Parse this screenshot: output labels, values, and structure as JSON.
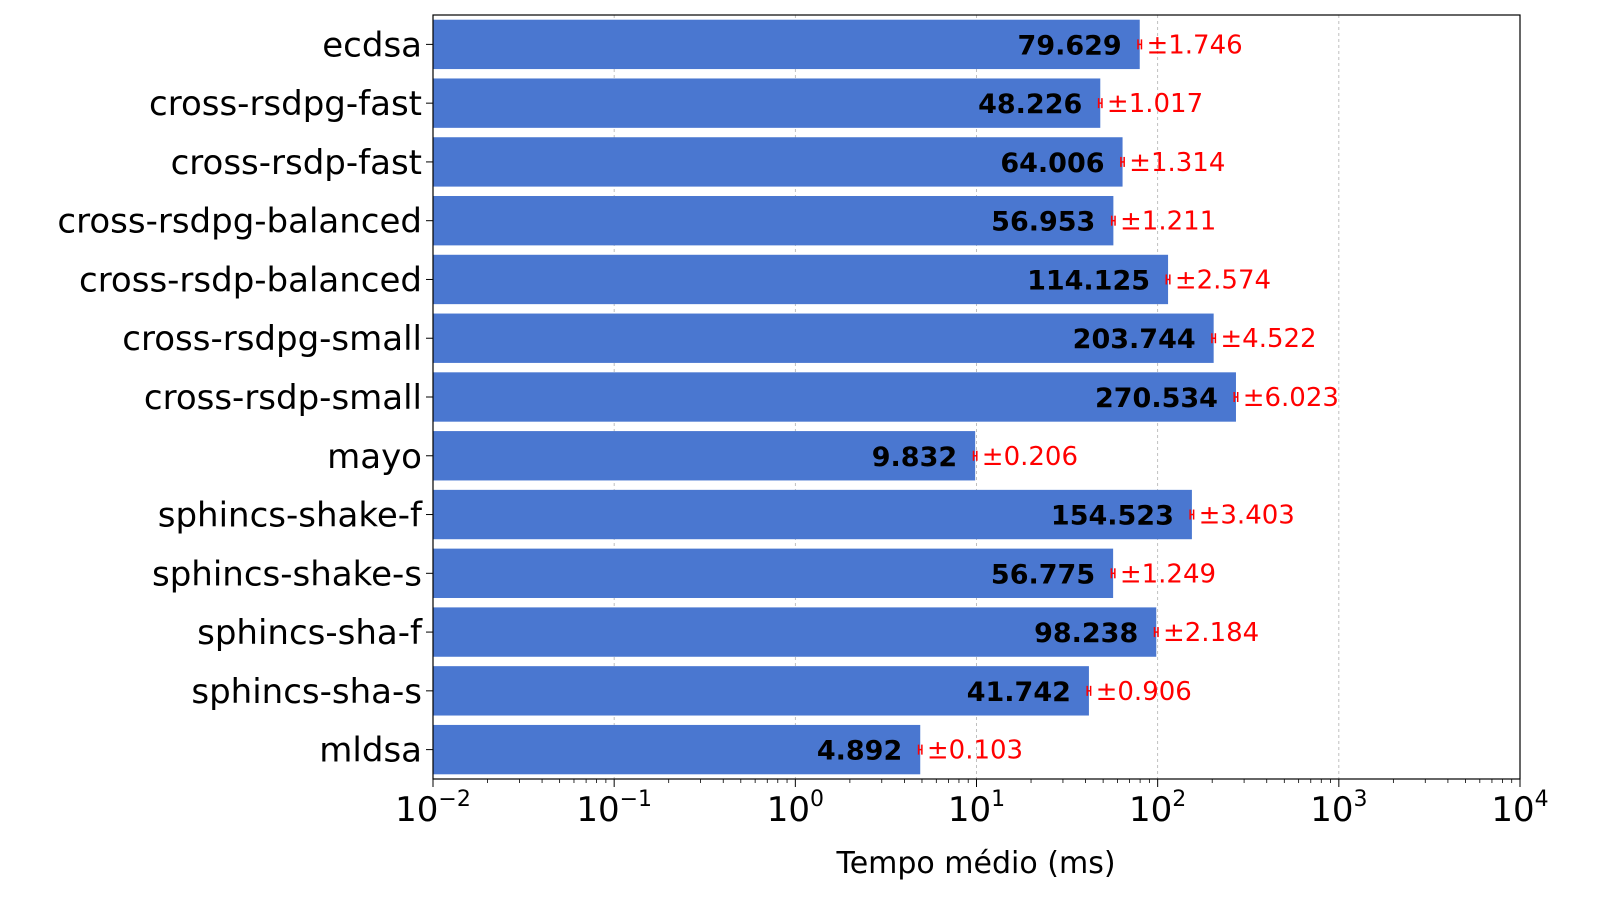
{
  "chart_data": {
    "type": "bar",
    "orientation": "horizontal",
    "xscale": "log",
    "xlim": [
      0.01,
      10000
    ],
    "xticks": [
      {
        "base": "10",
        "exp": "−2"
      },
      {
        "base": "10",
        "exp": "−1"
      },
      {
        "base": "10",
        "exp": "0"
      },
      {
        "base": "10",
        "exp": "1"
      },
      {
        "base": "10",
        "exp": "2"
      },
      {
        "base": "10",
        "exp": "3"
      },
      {
        "base": "10",
        "exp": "4"
      }
    ],
    "xlabel": "Tempo médio (ms)",
    "ylabel": "",
    "title": "",
    "grid": "vertical dashed at major ticks",
    "colors": {
      "bar": "#4a77d0",
      "error": "#ff0000",
      "value_label": "#000000",
      "error_label": "#ff0000"
    },
    "categories": [
      "ecdsa",
      "cross-rsdpg-fast",
      "cross-rsdp-fast",
      "cross-rsdpg-balanced",
      "cross-rsdp-balanced",
      "cross-rsdpg-small",
      "cross-rsdp-small",
      "mayo",
      "sphincs-shake-f",
      "sphincs-shake-s",
      "sphincs-sha-f",
      "sphincs-sha-s",
      "mldsa"
    ],
    "values": [
      79.629,
      48.226,
      64.006,
      56.953,
      114.125,
      203.744,
      270.534,
      9.832,
      154.523,
      56.775,
      98.238,
      41.742,
      4.892
    ],
    "errors": [
      1.746,
      1.017,
      1.314,
      1.211,
      2.574,
      4.522,
      6.023,
      0.206,
      3.403,
      1.249,
      2.184,
      0.906,
      0.103
    ],
    "value_labels": [
      "79.629",
      "48.226",
      "64.006",
      "56.953",
      "114.125",
      "203.744",
      "270.534",
      "9.832",
      "154.523",
      "56.775",
      "98.238",
      "41.742",
      "4.892"
    ],
    "error_labels": [
      "±1.746",
      "±1.017",
      "±1.314",
      "±1.211",
      "±2.574",
      "±4.522",
      "±6.023",
      "±0.206",
      "±3.403",
      "±1.249",
      "±2.184",
      "±0.906",
      "±0.103"
    ]
  }
}
